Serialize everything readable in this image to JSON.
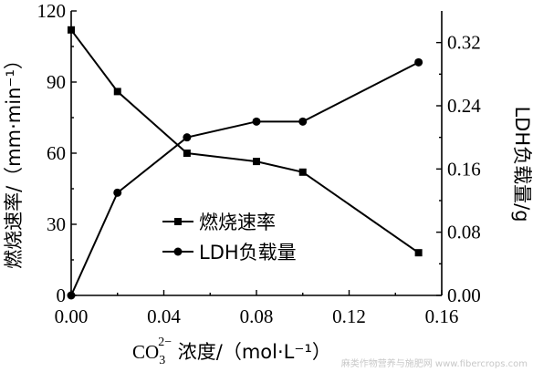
{
  "chart_data": {
    "type": "line",
    "xlabel_main": "CO",
    "xlabel_sub": "3",
    "xlabel_sup": "2−",
    "xlabel_rest": " 浓度/（mol·L⁻¹）",
    "ylabel_left": "燃烧速率/（mm·min⁻¹）",
    "ylabel_right": "LDH负载量/g",
    "xlim": [
      0,
      0.16
    ],
    "ylim_left": [
      0,
      120
    ],
    "ylim_right": [
      0,
      0.36
    ],
    "x_ticks": [
      "0.00",
      "0.04",
      "0.08",
      "0.12",
      "0.16"
    ],
    "y_left_ticks": [
      "0",
      "30",
      "60",
      "90",
      "120"
    ],
    "y_right_ticks": [
      "0.00",
      "0.08",
      "0.16",
      "0.24",
      "0.32"
    ],
    "series": [
      {
        "name": "燃烧速率",
        "axis": "left",
        "marker": "square",
        "x": [
          0.0,
          0.02,
          0.05,
          0.08,
          0.1,
          0.15
        ],
        "y": [
          112,
          86,
          60,
          56.5,
          52,
          18
        ]
      },
      {
        "name": "LDH负载量",
        "axis": "right",
        "marker": "circle",
        "x": [
          0.0,
          0.02,
          0.05,
          0.08,
          0.1,
          0.15
        ],
        "y": [
          0.0,
          0.13,
          0.2,
          0.22,
          0.22,
          0.295
        ]
      }
    ],
    "legend_position": "center-bottom"
  },
  "watermark": "麻类作物营养与施肥网 www.fibercrops.com"
}
